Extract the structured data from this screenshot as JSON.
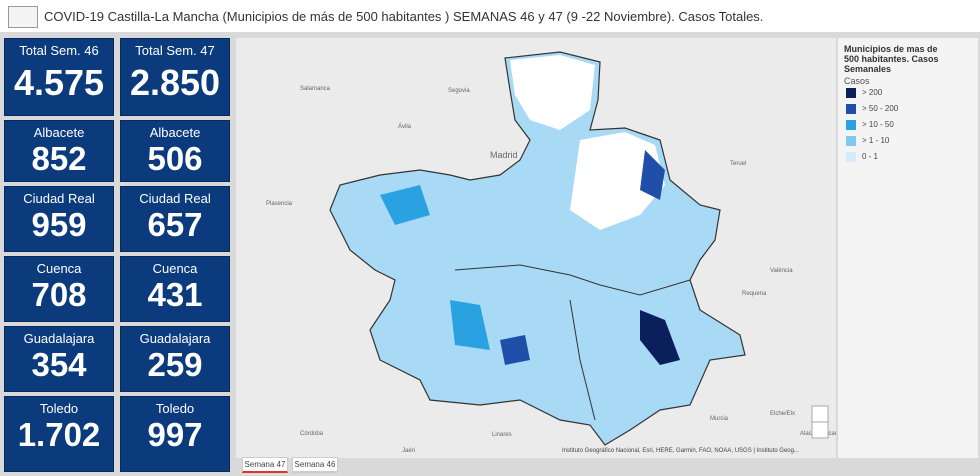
{
  "header": {
    "title": "COVID-19 Castilla-La Mancha (Municipios de más de 500 habitantes ) SEMANAS 46 y 47 (9 -22 Noviembre). Casos Totales."
  },
  "cards": [
    {
      "label": "Total Sem. 46",
      "value": "4.575"
    },
    {
      "label": "Total Sem. 47",
      "value": "2.850"
    },
    {
      "label": "Albacete",
      "value": "852"
    },
    {
      "label": "Albacete",
      "value": "506"
    },
    {
      "label": "Ciudad Real",
      "value": "959"
    },
    {
      "label": "Ciudad Real",
      "value": "657"
    },
    {
      "label": "Cuenca",
      "value": "708"
    },
    {
      "label": "Cuenca",
      "value": "431"
    },
    {
      "label": "Guadalajara",
      "value": "354"
    },
    {
      "label": "Guadalajara",
      "value": "259"
    },
    {
      "label": "Toledo",
      "value": "1.702"
    },
    {
      "label": "Toledo",
      "value": "997"
    }
  ],
  "map": {
    "places": [
      "Madrid",
      "Ávila",
      "Segovia",
      "Salamanca",
      "Plasencia",
      "Teruel",
      "València",
      "Requena",
      "Alacant/Alicante",
      "Córdoba",
      "Linares",
      "Jaén",
      "Murcia",
      "Elche/Elx"
    ],
    "attribution": "Instituto Geográfico Nacional, Esri, HERE, Garmin, FAO, NOAA, USGS | Instituto Geog...",
    "tabs": [
      "Semana 47",
      "Semana 46"
    ]
  },
  "legend": {
    "title": "Municipios de mas de 500 habitantes. Casos Semanales",
    "subtitle": "Casos",
    "items": [
      "> 200",
      "> 50 - 200",
      "> 10 - 50",
      "> 1 - 10",
      "0 - 1"
    ]
  }
}
